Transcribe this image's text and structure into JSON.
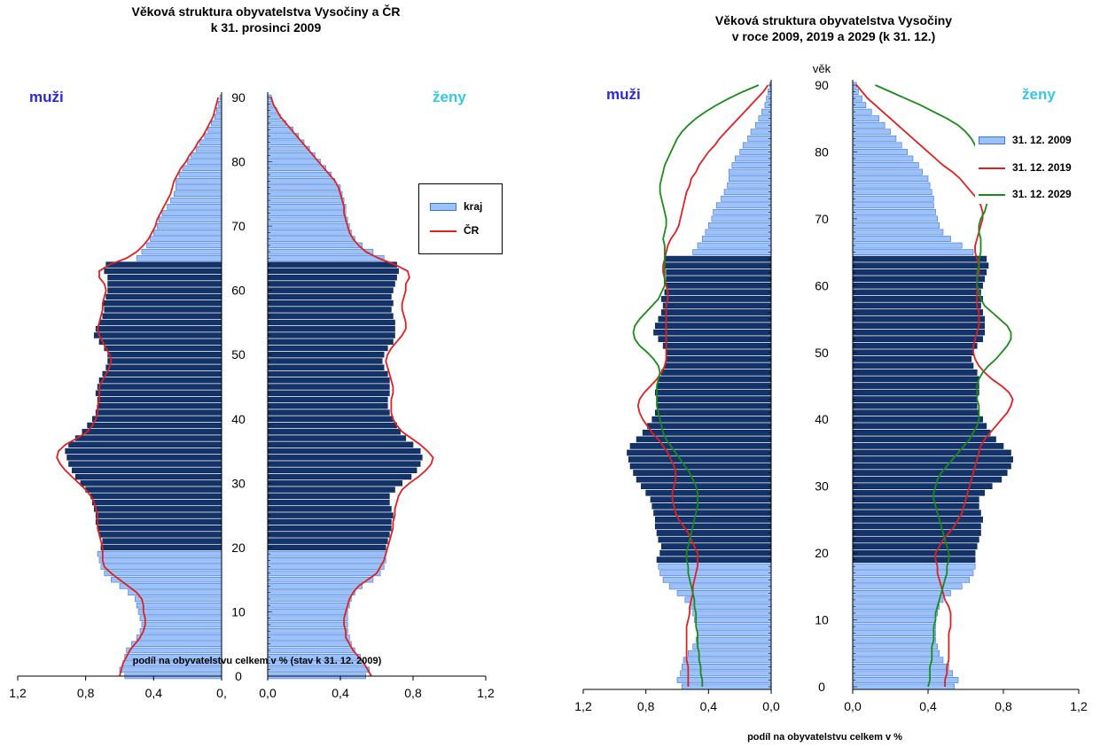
{
  "chart_data": [
    {
      "type": "population-pyramid",
      "title_lines": [
        "Věková struktura obyvatelstva Vysočiny a ČR",
        "k 31. prosinci 2009"
      ],
      "left_label": "muži",
      "right_label": "ženy",
      "xlabel": "podíl na obyvatelstvu celkem v % (stav k 31. 12. 2009)",
      "xlim": [
        0,
        1.2
      ],
      "ylim": [
        0,
        90
      ],
      "x_ticks_left": [
        "1,2",
        "0,8",
        "0,4",
        "0,"
      ],
      "x_ticks_right": [
        "0,0",
        "0,4",
        "0,8",
        "1,2"
      ],
      "y_ticks": [
        "0",
        "10",
        "20",
        "30",
        "40",
        "50",
        "60",
        "70",
        "80",
        "90"
      ],
      "working_age_highlight": [
        20,
        65
      ],
      "legend": [
        {
          "label": "kraj",
          "kind": "bar"
        },
        {
          "label": "ČR",
          "kind": "line",
          "color": "#e02020"
        }
      ],
      "series": [
        {
          "name": "kraj muži",
          "values": [
            0.57,
            0.6,
            0.58,
            0.57,
            0.56,
            0.53,
            0.5,
            0.48,
            0.47,
            0.48,
            0.49,
            0.5,
            0.51,
            0.55,
            0.6,
            0.65,
            0.69,
            0.71,
            0.72,
            0.73,
            0.71,
            0.7,
            0.72,
            0.73,
            0.74,
            0.74,
            0.75,
            0.76,
            0.77,
            0.8,
            0.83,
            0.86,
            0.88,
            0.9,
            0.91,
            0.92,
            0.9,
            0.86,
            0.82,
            0.79,
            0.76,
            0.74,
            0.73,
            0.73,
            0.74,
            0.73,
            0.72,
            0.7,
            0.68,
            0.67,
            0.67,
            0.69,
            0.72,
            0.75,
            0.74,
            0.72,
            0.7,
            0.69,
            0.7,
            0.68,
            0.67,
            0.67,
            0.67,
            0.69,
            0.68,
            0.5,
            0.47,
            0.44,
            0.42,
            0.4,
            0.38,
            0.37,
            0.35,
            0.32,
            0.3,
            0.28,
            0.27,
            0.27,
            0.25,
            0.23,
            0.2,
            0.18,
            0.15,
            0.13,
            0.1,
            0.08,
            0.06,
            0.04,
            0.03,
            0.02,
            0.01
          ]
        },
        {
          "name": "kraj ženy",
          "values": [
            0.54,
            0.56,
            0.53,
            0.51,
            0.48,
            0.46,
            0.45,
            0.44,
            0.44,
            0.44,
            0.44,
            0.45,
            0.46,
            0.48,
            0.52,
            0.58,
            0.62,
            0.64,
            0.65,
            0.65,
            0.65,
            0.66,
            0.67,
            0.68,
            0.68,
            0.69,
            0.68,
            0.67,
            0.67,
            0.7,
            0.74,
            0.79,
            0.82,
            0.84,
            0.85,
            0.84,
            0.8,
            0.76,
            0.73,
            0.71,
            0.69,
            0.67,
            0.66,
            0.66,
            0.67,
            0.67,
            0.67,
            0.66,
            0.64,
            0.63,
            0.64,
            0.66,
            0.69,
            0.7,
            0.7,
            0.7,
            0.69,
            0.68,
            0.69,
            0.68,
            0.69,
            0.7,
            0.71,
            0.72,
            0.71,
            0.64,
            0.58,
            0.52,
            0.48,
            0.46,
            0.45,
            0.44,
            0.43,
            0.43,
            0.42,
            0.41,
            0.4,
            0.37,
            0.35,
            0.32,
            0.29,
            0.26,
            0.23,
            0.2,
            0.17,
            0.14,
            0.1,
            0.07,
            0.05,
            0.03,
            0.02
          ]
        },
        {
          "name": "ČR muži",
          "values": [
            0.6,
            0.59,
            0.58,
            0.56,
            0.54,
            0.51,
            0.48,
            0.46,
            0.45,
            0.45,
            0.46,
            0.46,
            0.47,
            0.5,
            0.55,
            0.6,
            0.65,
            0.69,
            0.7,
            0.7,
            0.7,
            0.71,
            0.72,
            0.73,
            0.73,
            0.73,
            0.74,
            0.75,
            0.77,
            0.8,
            0.84,
            0.88,
            0.92,
            0.95,
            0.97,
            0.96,
            0.92,
            0.85,
            0.79,
            0.76,
            0.74,
            0.73,
            0.73,
            0.72,
            0.72,
            0.72,
            0.7,
            0.68,
            0.66,
            0.65,
            0.66,
            0.68,
            0.7,
            0.72,
            0.73,
            0.72,
            0.71,
            0.7,
            0.7,
            0.69,
            0.68,
            0.69,
            0.72,
            0.72,
            0.66,
            0.56,
            0.5,
            0.46,
            0.43,
            0.41,
            0.39,
            0.38,
            0.36,
            0.34,
            0.32,
            0.3,
            0.29,
            0.28,
            0.26,
            0.24,
            0.21,
            0.19,
            0.16,
            0.14,
            0.11,
            0.09,
            0.07,
            0.05,
            0.04,
            0.03,
            0.02
          ]
        },
        {
          "name": "ČR ženy",
          "values": [
            0.57,
            0.55,
            0.53,
            0.5,
            0.47,
            0.45,
            0.43,
            0.43,
            0.42,
            0.42,
            0.43,
            0.44,
            0.45,
            0.47,
            0.5,
            0.55,
            0.6,
            0.62,
            0.64,
            0.65,
            0.66,
            0.67,
            0.68,
            0.69,
            0.69,
            0.7,
            0.7,
            0.71,
            0.72,
            0.74,
            0.78,
            0.83,
            0.87,
            0.9,
            0.91,
            0.88,
            0.84,
            0.79,
            0.74,
            0.71,
            0.69,
            0.68,
            0.68,
            0.68,
            0.69,
            0.69,
            0.68,
            0.67,
            0.66,
            0.65,
            0.66,
            0.68,
            0.71,
            0.74,
            0.76,
            0.76,
            0.75,
            0.74,
            0.74,
            0.75,
            0.76,
            0.76,
            0.78,
            0.77,
            0.7,
            0.61,
            0.54,
            0.5,
            0.47,
            0.45,
            0.44,
            0.43,
            0.42,
            0.42,
            0.41,
            0.4,
            0.39,
            0.37,
            0.34,
            0.31,
            0.28,
            0.25,
            0.22,
            0.19,
            0.16,
            0.13,
            0.1,
            0.07,
            0.05,
            0.03,
            0.02
          ]
        }
      ]
    },
    {
      "type": "population-pyramid",
      "title_lines": [
        "Věková struktura obyvatelstva Vysočiny",
        "v roce 2009, 2019 a 2029 (k 31. 12.)"
      ],
      "left_label": "muži",
      "right_label": "ženy",
      "age_axis_label": "věk",
      "xlabel": "podíl na obyvatelstvu celkem v %",
      "xlim": [
        0,
        1.2
      ],
      "ylim": [
        0,
        90
      ],
      "x_ticks_left": [
        "1,2",
        "0,8",
        "0,4",
        "0,0"
      ],
      "x_ticks_right": [
        "0,0",
        "0,4",
        "0,8",
        "1,2"
      ],
      "y_ticks": [
        "0",
        "10",
        "20",
        "30",
        "40",
        "50",
        "60",
        "70",
        "80",
        "90"
      ],
      "working_age_highlight": [
        19,
        65
      ],
      "legend": [
        {
          "label": "31. 12. 2009",
          "kind": "bar"
        },
        {
          "label": "31. 12. 2019",
          "kind": "line",
          "color": "#e02020"
        },
        {
          "label": "31. 12. 2029",
          "kind": "line",
          "color": "#1a8a1a"
        }
      ],
      "series": [
        {
          "name": "31. 12. 2009 muži",
          "values": [
            0.57,
            0.6,
            0.58,
            0.57,
            0.56,
            0.53,
            0.5,
            0.48,
            0.47,
            0.48,
            0.49,
            0.5,
            0.51,
            0.55,
            0.6,
            0.65,
            0.69,
            0.71,
            0.72,
            0.73,
            0.71,
            0.7,
            0.72,
            0.73,
            0.74,
            0.74,
            0.75,
            0.76,
            0.77,
            0.8,
            0.83,
            0.86,
            0.88,
            0.9,
            0.91,
            0.92,
            0.9,
            0.86,
            0.82,
            0.79,
            0.76,
            0.74,
            0.73,
            0.73,
            0.74,
            0.73,
            0.72,
            0.7,
            0.68,
            0.67,
            0.67,
            0.69,
            0.72,
            0.75,
            0.74,
            0.72,
            0.7,
            0.69,
            0.7,
            0.68,
            0.67,
            0.67,
            0.67,
            0.69,
            0.68,
            0.5,
            0.47,
            0.44,
            0.42,
            0.4,
            0.38,
            0.37,
            0.35,
            0.32,
            0.3,
            0.28,
            0.27,
            0.27,
            0.25,
            0.23,
            0.2,
            0.18,
            0.15,
            0.13,
            0.1,
            0.08,
            0.06,
            0.04,
            0.03,
            0.02,
            0.01
          ]
        },
        {
          "name": "31. 12. 2009 ženy",
          "values": [
            0.54,
            0.56,
            0.53,
            0.51,
            0.48,
            0.46,
            0.45,
            0.44,
            0.44,
            0.44,
            0.44,
            0.45,
            0.46,
            0.48,
            0.52,
            0.58,
            0.62,
            0.64,
            0.65,
            0.65,
            0.65,
            0.66,
            0.67,
            0.68,
            0.68,
            0.69,
            0.68,
            0.67,
            0.67,
            0.7,
            0.74,
            0.79,
            0.82,
            0.84,
            0.85,
            0.84,
            0.8,
            0.76,
            0.73,
            0.71,
            0.69,
            0.67,
            0.66,
            0.66,
            0.67,
            0.67,
            0.67,
            0.66,
            0.64,
            0.63,
            0.64,
            0.66,
            0.69,
            0.7,
            0.7,
            0.7,
            0.69,
            0.68,
            0.69,
            0.68,
            0.69,
            0.7,
            0.71,
            0.72,
            0.71,
            0.64,
            0.58,
            0.52,
            0.48,
            0.46,
            0.45,
            0.44,
            0.43,
            0.43,
            0.42,
            0.41,
            0.4,
            0.37,
            0.35,
            0.32,
            0.29,
            0.26,
            0.23,
            0.2,
            0.17,
            0.14,
            0.1,
            0.07,
            0.05,
            0.03,
            0.02
          ]
        },
        {
          "name": "31. 12. 2019 muži",
          "values": [
            0.53,
            0.53,
            0.53,
            0.53,
            0.54,
            0.54,
            0.54,
            0.54,
            0.54,
            0.54,
            0.53,
            0.52,
            0.52,
            0.51,
            0.5,
            0.5,
            0.49,
            0.48,
            0.47,
            0.47,
            0.47,
            0.49,
            0.51,
            0.53,
            0.56,
            0.59,
            0.61,
            0.62,
            0.63,
            0.63,
            0.62,
            0.61,
            0.61,
            0.62,
            0.64,
            0.66,
            0.69,
            0.72,
            0.76,
            0.79,
            0.82,
            0.84,
            0.85,
            0.84,
            0.81,
            0.77,
            0.73,
            0.7,
            0.68,
            0.67,
            0.67,
            0.67,
            0.67,
            0.67,
            0.67,
            0.67,
            0.67,
            0.67,
            0.66,
            0.66,
            0.67,
            0.68,
            0.69,
            0.69,
            0.68,
            0.67,
            0.66,
            0.64,
            0.61,
            0.59,
            0.58,
            0.57,
            0.56,
            0.55,
            0.54,
            0.52,
            0.51,
            0.48,
            0.46,
            0.43,
            0.4,
            0.36,
            0.33,
            0.29,
            0.25,
            0.21,
            0.17,
            0.13,
            0.09,
            0.05,
            0.02
          ]
        },
        {
          "name": "31. 12. 2019 ženy",
          "values": [
            0.49,
            0.49,
            0.5,
            0.5,
            0.51,
            0.51,
            0.51,
            0.51,
            0.51,
            0.52,
            0.52,
            0.52,
            0.51,
            0.49,
            0.48,
            0.47,
            0.46,
            0.45,
            0.45,
            0.44,
            0.44,
            0.46,
            0.48,
            0.51,
            0.54,
            0.56,
            0.58,
            0.59,
            0.6,
            0.61,
            0.62,
            0.63,
            0.64,
            0.65,
            0.66,
            0.67,
            0.68,
            0.7,
            0.73,
            0.76,
            0.79,
            0.82,
            0.84,
            0.85,
            0.83,
            0.79,
            0.74,
            0.7,
            0.67,
            0.65,
            0.64,
            0.64,
            0.65,
            0.66,
            0.67,
            0.67,
            0.67,
            0.66,
            0.66,
            0.66,
            0.66,
            0.66,
            0.67,
            0.67,
            0.66,
            0.65,
            0.65,
            0.66,
            0.67,
            0.68,
            0.69,
            0.69,
            0.68,
            0.66,
            0.63,
            0.6,
            0.57,
            0.53,
            0.48,
            0.44,
            0.4,
            0.36,
            0.32,
            0.28,
            0.24,
            0.2,
            0.16,
            0.12,
            0.08,
            0.05,
            0.02
          ]
        },
        {
          "name": "31. 12. 2029 muži",
          "values": [
            0.44,
            0.44,
            0.45,
            0.45,
            0.46,
            0.46,
            0.47,
            0.47,
            0.47,
            0.48,
            0.48,
            0.48,
            0.49,
            0.49,
            0.5,
            0.51,
            0.52,
            0.53,
            0.53,
            0.54,
            0.54,
            0.53,
            0.52,
            0.51,
            0.5,
            0.49,
            0.48,
            0.47,
            0.47,
            0.47,
            0.48,
            0.5,
            0.52,
            0.55,
            0.58,
            0.61,
            0.64,
            0.67,
            0.69,
            0.7,
            0.71,
            0.72,
            0.73,
            0.73,
            0.73,
            0.73,
            0.72,
            0.71,
            0.72,
            0.75,
            0.79,
            0.84,
            0.87,
            0.88,
            0.87,
            0.84,
            0.8,
            0.76,
            0.72,
            0.7,
            0.68,
            0.68,
            0.68,
            0.68,
            0.68,
            0.68,
            0.68,
            0.69,
            0.68,
            0.67,
            0.67,
            0.68,
            0.69,
            0.7,
            0.71,
            0.71,
            0.7,
            0.69,
            0.68,
            0.66,
            0.64,
            0.62,
            0.6,
            0.57,
            0.53,
            0.48,
            0.42,
            0.35,
            0.27,
            0.18,
            0.08
          ]
        },
        {
          "name": "31. 12. 2029 ženy",
          "values": [
            0.4,
            0.41,
            0.41,
            0.41,
            0.42,
            0.42,
            0.42,
            0.43,
            0.43,
            0.43,
            0.44,
            0.44,
            0.45,
            0.46,
            0.47,
            0.48,
            0.49,
            0.5,
            0.5,
            0.51,
            0.51,
            0.5,
            0.49,
            0.48,
            0.47,
            0.46,
            0.45,
            0.44,
            0.43,
            0.43,
            0.44,
            0.45,
            0.47,
            0.5,
            0.53,
            0.56,
            0.59,
            0.62,
            0.64,
            0.66,
            0.67,
            0.67,
            0.67,
            0.66,
            0.66,
            0.66,
            0.67,
            0.69,
            0.72,
            0.76,
            0.79,
            0.82,
            0.84,
            0.84,
            0.82,
            0.78,
            0.74,
            0.7,
            0.68,
            0.67,
            0.66,
            0.66,
            0.66,
            0.67,
            0.67,
            0.68,
            0.68,
            0.68,
            0.67,
            0.67,
            0.68,
            0.7,
            0.71,
            0.72,
            0.72,
            0.71,
            0.7,
            0.69,
            0.68,
            0.67,
            0.66,
            0.65,
            0.63,
            0.6,
            0.56,
            0.5,
            0.43,
            0.36,
            0.28,
            0.2,
            0.12
          ]
        }
      ]
    }
  ]
}
